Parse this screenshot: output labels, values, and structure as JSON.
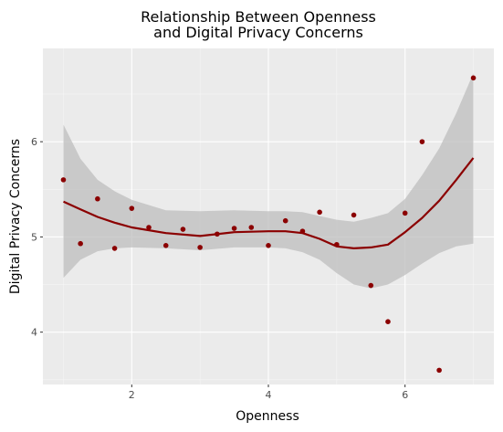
{
  "chart_data": {
    "type": "scatter",
    "title_line1": "Relationship Between Openness",
    "title_line2": "and Digital Privacy Concerns",
    "xlabel": "Openness",
    "ylabel": "Digital Privacy Concerns",
    "xlim": [
      0.7,
      7.3
    ],
    "ylim": [
      3.45,
      6.98
    ],
    "x_ticks": [
      2,
      4,
      6
    ],
    "y_ticks": [
      4,
      5,
      6
    ],
    "x_tick_labels": [
      "2",
      "4",
      "6"
    ],
    "y_tick_labels": [
      "4",
      "5",
      "6"
    ],
    "grid": true,
    "panel_color": "#ebebeb",
    "point_color": "#8b0000",
    "line_color": "#8b0000",
    "band_color": "#bdbdbd",
    "points": [
      {
        "x": 1.0,
        "y": 5.6
      },
      {
        "x": 1.25,
        "y": 4.93
      },
      {
        "x": 1.5,
        "y": 5.4
      },
      {
        "x": 1.75,
        "y": 4.88
      },
      {
        "x": 2.0,
        "y": 5.3
      },
      {
        "x": 2.25,
        "y": 5.1
      },
      {
        "x": 2.5,
        "y": 4.91
      },
      {
        "x": 2.75,
        "y": 5.08
      },
      {
        "x": 3.0,
        "y": 4.89
      },
      {
        "x": 3.25,
        "y": 5.03
      },
      {
        "x": 3.5,
        "y": 5.09
      },
      {
        "x": 3.75,
        "y": 5.1
      },
      {
        "x": 4.0,
        "y": 4.91
      },
      {
        "x": 4.25,
        "y": 5.17
      },
      {
        "x": 4.5,
        "y": 5.06
      },
      {
        "x": 4.75,
        "y": 5.26
      },
      {
        "x": 5.0,
        "y": 4.92
      },
      {
        "x": 5.25,
        "y": 5.23
      },
      {
        "x": 5.5,
        "y": 4.49
      },
      {
        "x": 5.75,
        "y": 4.11
      },
      {
        "x": 6.0,
        "y": 5.25
      },
      {
        "x": 6.25,
        "y": 6.0
      },
      {
        "x": 6.5,
        "y": 3.6
      },
      {
        "x": 7.0,
        "y": 6.67
      }
    ],
    "smooth_fit": {
      "x": [
        1.0,
        1.25,
        1.5,
        1.75,
        2.0,
        2.5,
        3.0,
        3.5,
        4.0,
        4.25,
        4.5,
        4.75,
        5.0,
        5.25,
        5.5,
        5.75,
        6.0,
        6.25,
        6.5,
        6.75,
        7.0
      ],
      "y": [
        5.37,
        5.29,
        5.21,
        5.15,
        5.1,
        5.04,
        5.01,
        5.05,
        5.06,
        5.06,
        5.04,
        4.98,
        4.9,
        4.88,
        4.89,
        4.92,
        5.05,
        5.2,
        5.38,
        5.6,
        5.83
      ],
      "lower": [
        4.57,
        4.76,
        4.85,
        4.88,
        4.89,
        4.88,
        4.86,
        4.89,
        4.89,
        4.88,
        4.84,
        4.76,
        4.62,
        4.5,
        4.46,
        4.5,
        4.6,
        4.72,
        4.83,
        4.9,
        4.93
      ],
      "upper": [
        6.18,
        5.82,
        5.6,
        5.48,
        5.39,
        5.28,
        5.27,
        5.28,
        5.27,
        5.27,
        5.26,
        5.22,
        5.18,
        5.16,
        5.2,
        5.25,
        5.4,
        5.65,
        5.93,
        6.3,
        6.72
      ]
    }
  }
}
